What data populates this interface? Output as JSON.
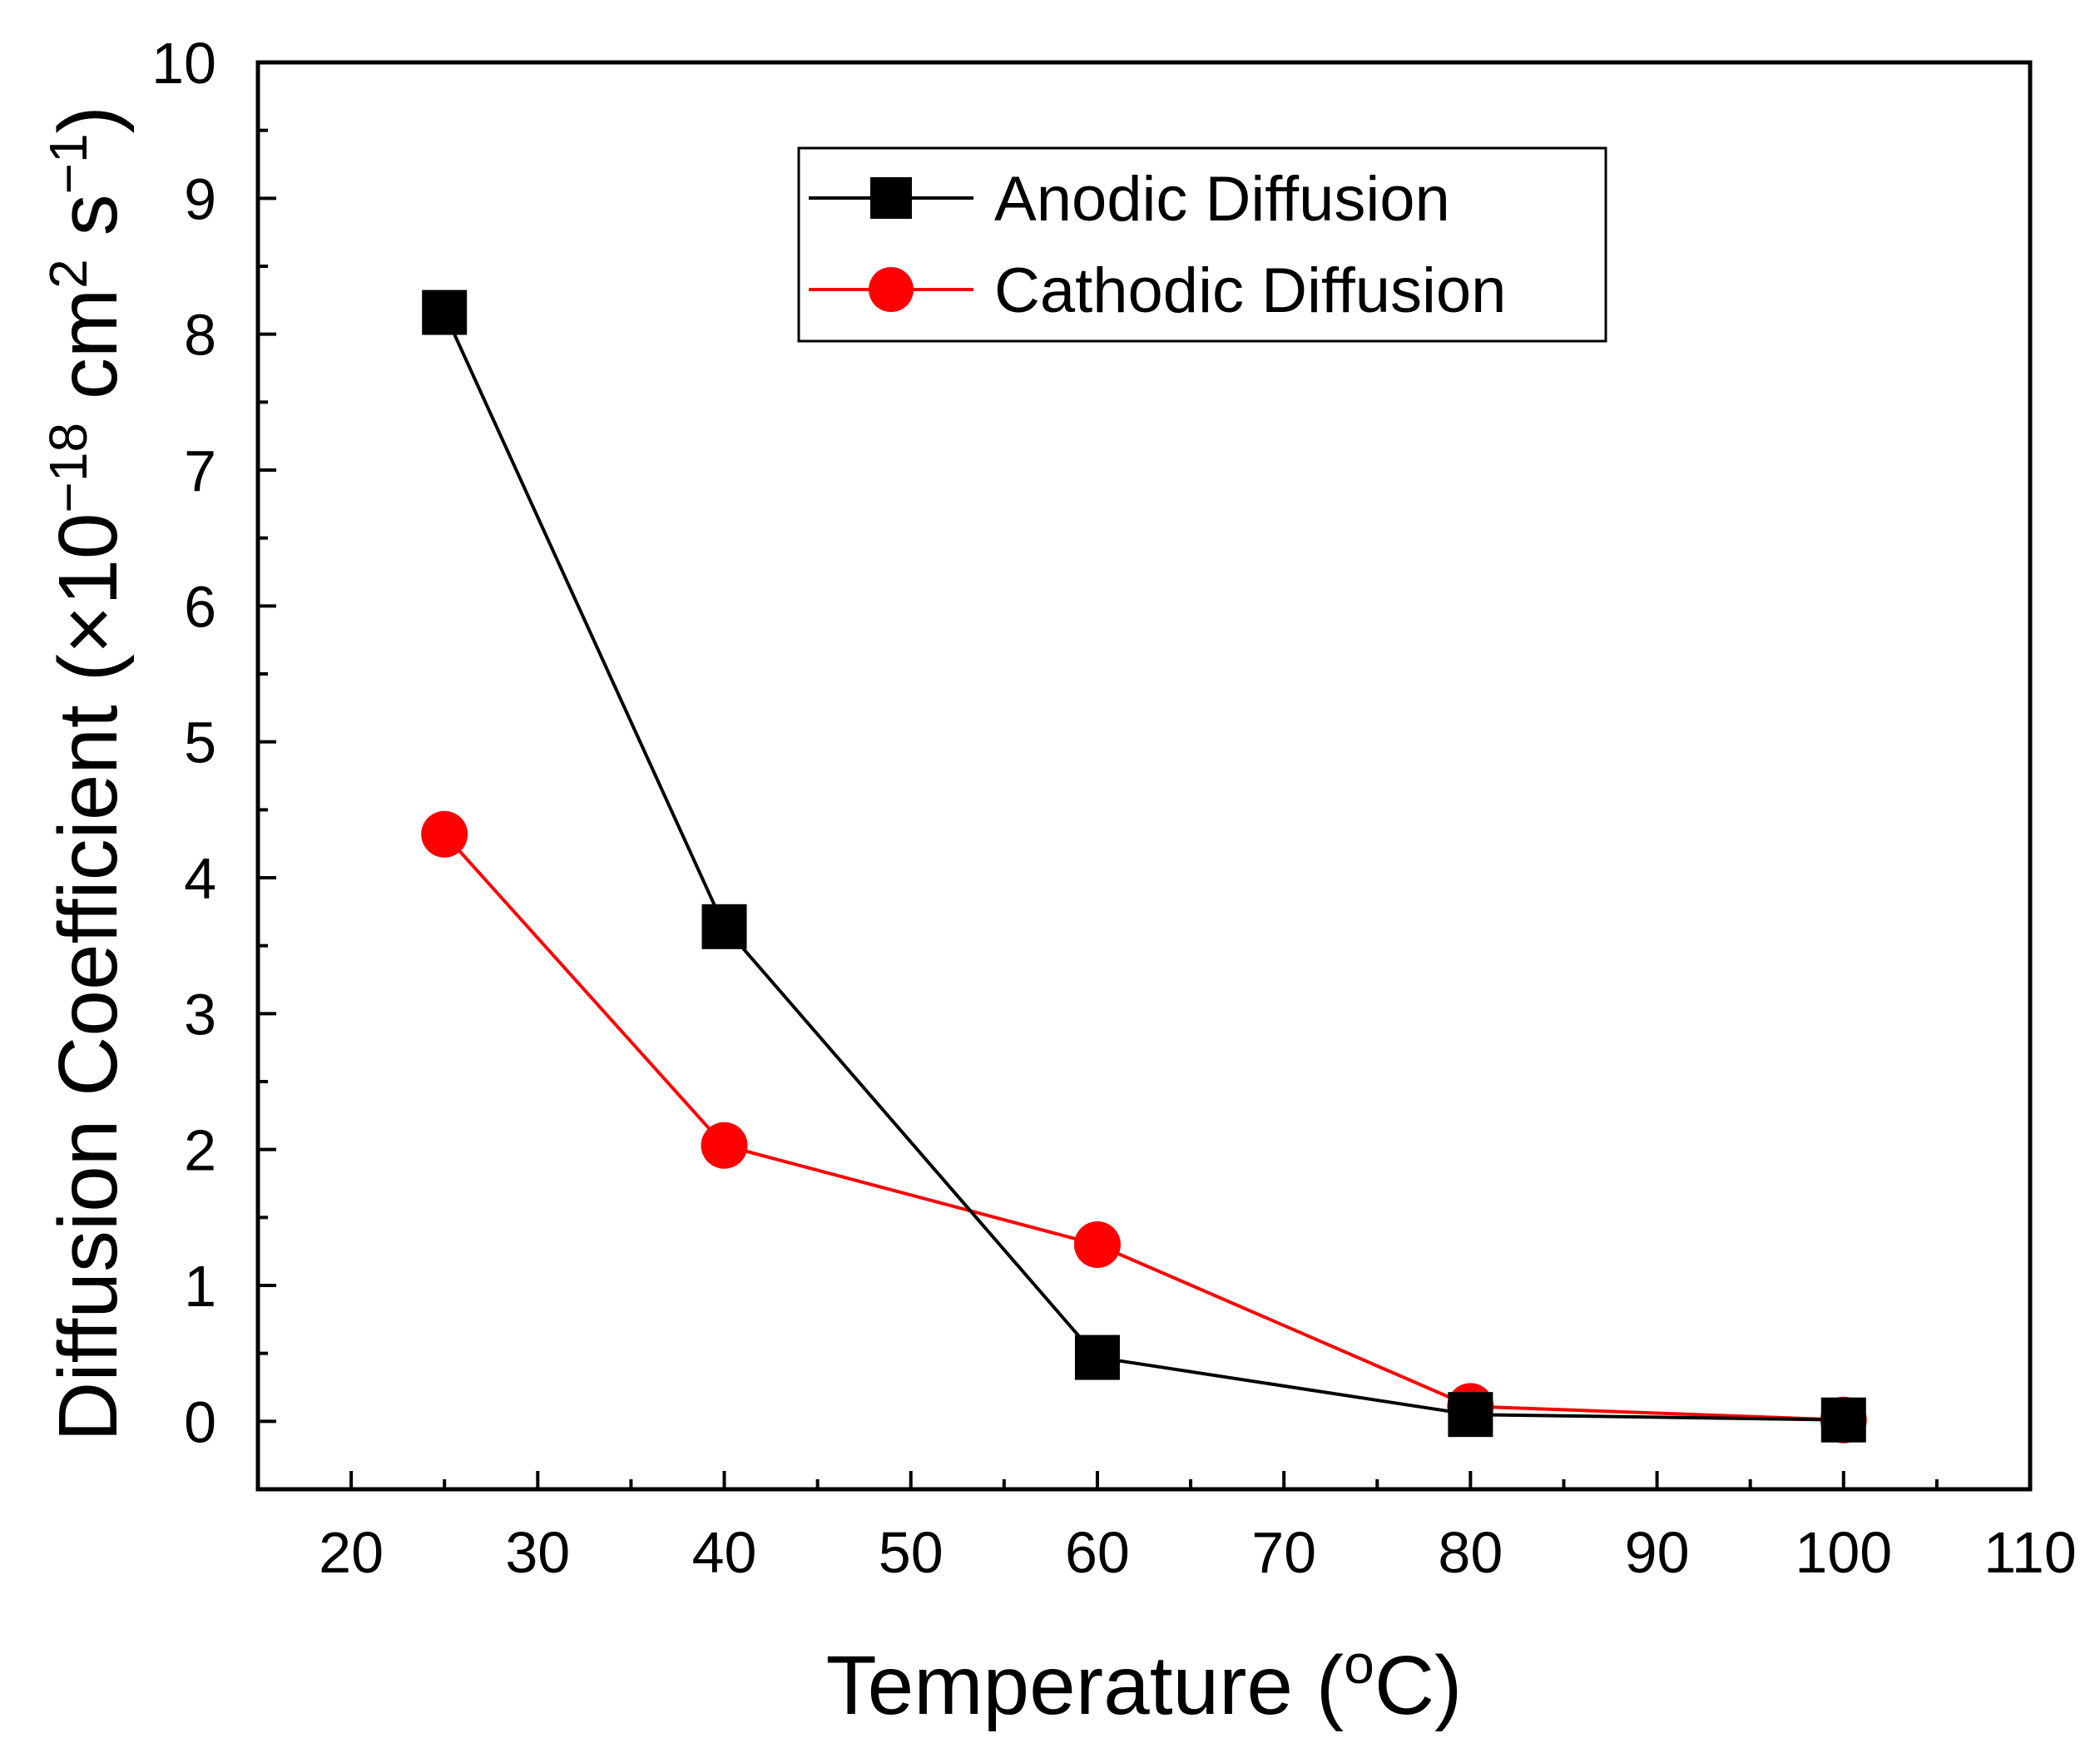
{
  "chart_data": {
    "type": "line",
    "title": "",
    "xlabel": "Temperature (oC)",
    "xlabel_parts": {
      "main": "Temperature (",
      "sup": "o",
      "tail": "C)"
    },
    "ylabel": "Diffusion Coefficient (×10−18 cm2 s−1)",
    "ylabel_parts": {
      "main": "Diffusion Coefficient (×10",
      "sup1": "−18",
      "mid1": " cm",
      "sup2": "2",
      "mid2": " s",
      "sup3": "−1",
      "tail": ")"
    },
    "xlim": [
      15,
      110
    ],
    "ylim": [
      -0.5,
      10
    ],
    "xticks": [
      20,
      30,
      40,
      50,
      60,
      70,
      80,
      90,
      100,
      110
    ],
    "yticks": [
      0,
      1,
      2,
      3,
      4,
      5,
      6,
      7,
      8,
      9,
      10
    ],
    "grid": false,
    "legend_position": "top-center",
    "series": [
      {
        "name": "Anodic Diffusion",
        "color": "#000000",
        "marker": "square",
        "x": [
          25,
          40,
          60,
          80,
          100
        ],
        "y": [
          8.16,
          3.64,
          0.47,
          0.05,
          0.01
        ]
      },
      {
        "name": "Cathodic Diffusion",
        "color": "#ff0000",
        "marker": "circle",
        "x": [
          25,
          40,
          60,
          80,
          100
        ],
        "y": [
          4.32,
          2.03,
          1.3,
          0.11,
          0.01
        ]
      }
    ]
  }
}
